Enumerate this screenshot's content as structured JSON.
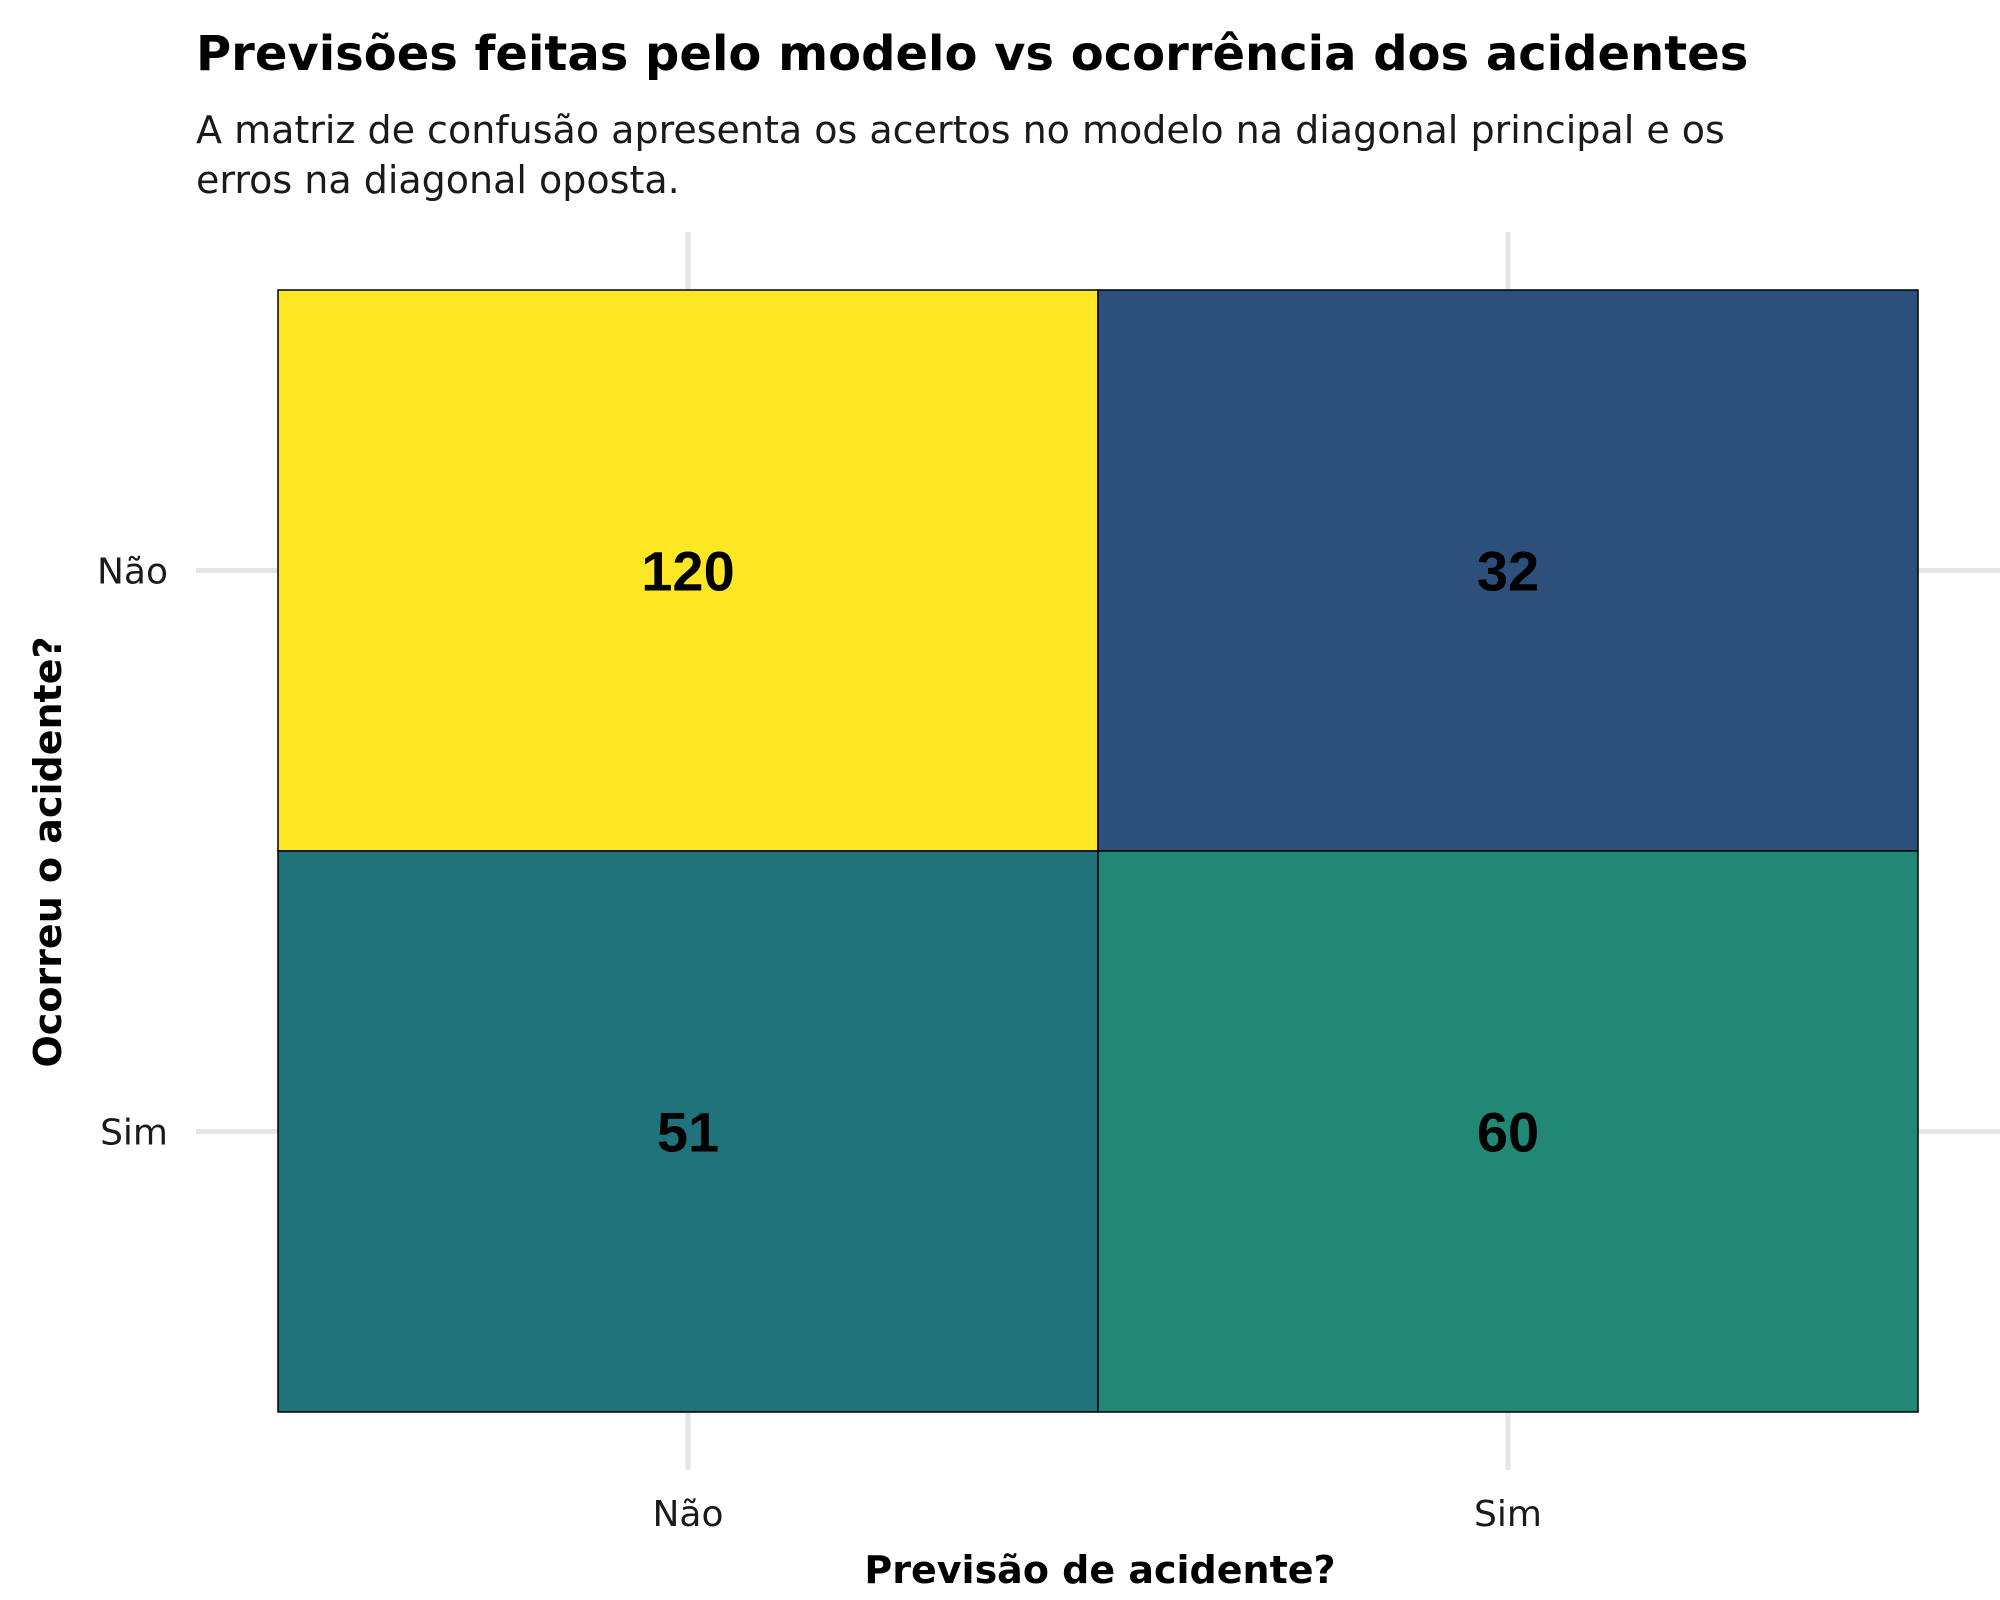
{
  "chart_data": {
    "type": "heatmap",
    "title": "Previsões feitas pelo modelo vs ocorrência dos acidentes",
    "subtitle": [
      "A matriz de confusão apresenta os acertos no modelo na diagonal principal e os",
      "erros na diagonal oposta."
    ],
    "xlabel": "Previsão de acidente?",
    "ylabel": "Ocorreu o acidente?",
    "x_categories": [
      "Não",
      "Sim"
    ],
    "y_categories": [
      "Não",
      "Sim"
    ],
    "cells": [
      {
        "x": "Não",
        "y": "Não",
        "value": 120,
        "color": "#fde725"
      },
      {
        "x": "Sim",
        "y": "Não",
        "value": 32,
        "color": "#2c4f7c"
      },
      {
        "x": "Não",
        "y": "Sim",
        "value": 51,
        "color": "#21737b"
      },
      {
        "x": "Sim",
        "y": "Sim",
        "value": 60,
        "color": "#218876"
      }
    ],
    "grid": true,
    "legend": "none"
  }
}
